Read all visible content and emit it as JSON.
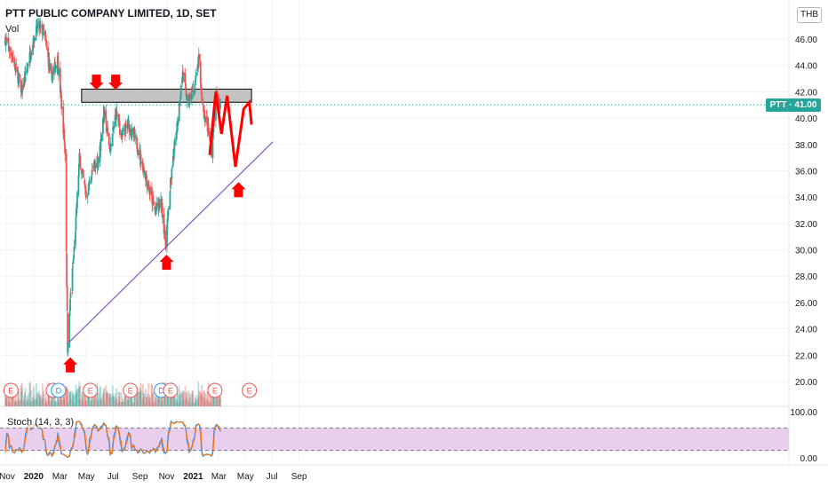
{
  "header": {
    "title": "PTT PUBLIC COMPANY LIMITED, 1D, SET",
    "volume_label": "Vol",
    "stoch_label": "Stoch (14, 3, 3)",
    "currency": "THB",
    "price_tag": "PTT · 41.00"
  },
  "colors": {
    "candle_up": "#26a69a",
    "candle_down": "#ef5350",
    "annotation": "#ff0000",
    "trendline": "#7e57c2",
    "zone_fill": "#bdbdbd",
    "stoch_band": "#e1bee7",
    "stoch_k": "#2196f3",
    "stoch_d": "#ff6d00"
  },
  "chart_data": [
    {
      "type": "candlestick",
      "title": "PTT PUBLIC COMPANY LIMITED, 1D, SET",
      "price_axis": [
        20,
        22,
        24,
        26,
        28,
        30,
        32,
        34,
        36,
        38,
        40,
        42,
        44,
        46
      ],
      "price_tick_labels": [
        "20.00",
        "22.00",
        "24.00",
        "26.00",
        "28.00",
        "30.00",
        "32.00",
        "34.00",
        "36.00",
        "38.00",
        "40.00",
        "42.00",
        "44.00",
        "46.00"
      ],
      "ylim": [
        18.9,
        48.0
      ],
      "time_tick_labels": [
        "Nov",
        "2020",
        "Mar",
        "May",
        "Jul",
        "Sep",
        "Nov",
        "2021",
        "Mar",
        "May",
        "Jul",
        "Sep"
      ],
      "last_price": 41.0,
      "price_path": [
        {
          "date": "2019-10-28",
          "close": 46.0
        },
        {
          "date": "2019-11-15",
          "close": 44.5
        },
        {
          "date": "2019-12-05",
          "close": 42.0
        },
        {
          "date": "2019-12-25",
          "close": 45.0
        },
        {
          "date": "2020-01-10",
          "close": 47.0
        },
        {
          "date": "2020-01-25",
          "close": 46.5
        },
        {
          "date": "2020-02-10",
          "close": 43.0
        },
        {
          "date": "2020-02-25",
          "close": 44.5
        },
        {
          "date": "2020-03-05",
          "close": 41.0
        },
        {
          "date": "2020-03-13",
          "close": 37.5
        },
        {
          "date": "2020-03-19",
          "close": 22.5
        },
        {
          "date": "2020-03-25",
          "close": 26.0
        },
        {
          "date": "2020-04-05",
          "close": 31.0
        },
        {
          "date": "2020-04-15",
          "close": 37.0
        },
        {
          "date": "2020-05-01",
          "close": 34.0
        },
        {
          "date": "2020-05-15",
          "close": 36.0
        },
        {
          "date": "2020-05-30",
          "close": 37.0
        },
        {
          "date": "2020-06-10",
          "close": 40.5
        },
        {
          "date": "2020-06-25",
          "close": 37.5
        },
        {
          "date": "2020-07-08",
          "close": 40.5
        },
        {
          "date": "2020-07-22",
          "close": 38.5
        },
        {
          "date": "2020-08-05",
          "close": 39.5
        },
        {
          "date": "2020-08-25",
          "close": 38.0
        },
        {
          "date": "2020-09-15",
          "close": 35.5
        },
        {
          "date": "2020-10-05",
          "close": 33.0
        },
        {
          "date": "2020-10-20",
          "close": 33.5
        },
        {
          "date": "2020-10-30",
          "close": 30.5
        },
        {
          "date": "2020-11-10",
          "close": 35.0
        },
        {
          "date": "2020-11-25",
          "close": 39.5
        },
        {
          "date": "2020-12-08",
          "close": 43.5
        },
        {
          "date": "2020-12-20",
          "close": 41.0
        },
        {
          "date": "2021-01-05",
          "close": 42.5
        },
        {
          "date": "2021-01-14",
          "close": 44.5
        },
        {
          "date": "2021-01-22",
          "close": 41.0
        },
        {
          "date": "2021-02-02",
          "close": 39.5
        },
        {
          "date": "2021-02-12",
          "close": 37.5
        },
        {
          "date": "2021-02-22",
          "close": 41.5
        },
        {
          "date": "2021-03-05",
          "close": 41.0
        }
      ],
      "resistance_zone": {
        "from": 41.2,
        "to": 42.2,
        "start": "2020-04-20",
        "end": "2021-05-15"
      },
      "support_trendline": {
        "start": {
          "date": "2020-03-23",
          "price": 23.0
        },
        "end": {
          "date": "2021-07-03",
          "price": 38.2
        }
      },
      "projection_path": [
        {
          "date": "2021-02-08",
          "price": 37.2
        },
        {
          "date": "2021-02-22",
          "price": 42.0
        },
        {
          "date": "2021-03-07",
          "price": 38.8
        },
        {
          "date": "2021-03-20",
          "price": 41.7
        },
        {
          "date": "2021-04-08",
          "price": 36.3
        },
        {
          "date": "2021-04-27",
          "price": 40.7
        },
        {
          "date": "2021-05-10",
          "price": 41.2
        },
        {
          "date": "2021-05-15",
          "price": 39.5
        }
      ],
      "down_arrows": [
        {
          "date": "2020-05-24",
          "price": 43.5
        },
        {
          "date": "2020-07-07",
          "price": 43.5
        }
      ],
      "up_arrows": [
        {
          "date": "2020-03-25",
          "price": 21.7
        },
        {
          "date": "2020-11-01",
          "price": 29.5
        },
        {
          "date": "2021-04-15",
          "price": 35.0
        }
      ],
      "earnings_markers": [
        {
          "label": "E",
          "date": "2019-11-10"
        },
        {
          "label": "E",
          "date": "2020-02-15"
        },
        {
          "label": "D",
          "date": "2020-02-27"
        },
        {
          "label": "E",
          "date": "2020-05-10"
        },
        {
          "label": "E",
          "date": "2020-08-10"
        },
        {
          "label": "D",
          "date": "2020-10-20"
        },
        {
          "label": "E",
          "date": "2020-11-10"
        },
        {
          "label": "E",
          "date": "2021-02-20"
        },
        {
          "label": "E",
          "date": "2021-05-10"
        }
      ]
    },
    {
      "type": "line",
      "title": "Stoch (14, 3, 3)",
      "ylim": [
        0,
        100
      ],
      "tick_labels": [
        "100.00",
        "0.00"
      ],
      "band": [
        20,
        80
      ],
      "series": []
    }
  ]
}
